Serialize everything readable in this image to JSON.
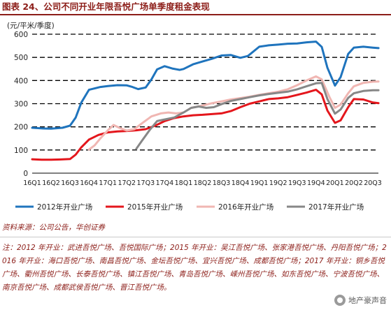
{
  "header": {
    "title": "图表 24、公司不同开业年限吾悦广场单季度租金表现"
  },
  "chart_data": {
    "type": "line",
    "unit_label": "(元/平米/季度)",
    "categories": [
      "16Q1",
      "16Q2",
      "16Q3",
      "16Q4",
      "17Q1",
      "17Q2",
      "17Q3",
      "17Q4",
      "18Q1",
      "18Q2",
      "18Q3",
      "18Q4",
      "19Q1",
      "19Q2",
      "19Q3",
      "19Q4",
      "20Q1",
      "20Q2",
      "20Q3"
    ],
    "ylim": [
      0,
      600
    ],
    "yticks": [
      0,
      100,
      200,
      300,
      400,
      500,
      600
    ],
    "grid": "horizontal-dashed",
    "legend_position": "bottom",
    "series": [
      {
        "name": "2012年开业广场",
        "color": "#1f74bd",
        "points": [
          [
            0,
            196
          ],
          [
            0.6,
            193
          ],
          [
            1,
            192
          ],
          [
            1.6,
            196
          ],
          [
            2,
            205
          ],
          [
            2.3,
            240
          ],
          [
            2.6,
            305
          ],
          [
            3,
            360
          ],
          [
            3.6,
            372
          ],
          [
            4,
            376
          ],
          [
            4.5,
            380
          ],
          [
            5,
            379
          ],
          [
            5.3,
            372
          ],
          [
            5.6,
            363
          ],
          [
            6,
            370
          ],
          [
            6.3,
            405
          ],
          [
            6.6,
            448
          ],
          [
            7,
            462
          ],
          [
            7.4,
            452
          ],
          [
            7.8,
            446
          ],
          [
            8,
            450
          ],
          [
            8.5,
            470
          ],
          [
            9,
            482
          ],
          [
            9.5,
            494
          ],
          [
            10,
            508
          ],
          [
            10.5,
            510
          ],
          [
            11,
            498
          ],
          [
            11.4,
            506
          ],
          [
            12,
            546
          ],
          [
            12.5,
            552
          ],
          [
            13,
            555
          ],
          [
            13.5,
            559
          ],
          [
            14,
            560
          ],
          [
            14.5,
            565
          ],
          [
            15,
            568
          ],
          [
            15.3,
            545
          ],
          [
            15.6,
            455
          ],
          [
            16,
            378
          ],
          [
            16.3,
            415
          ],
          [
            16.7,
            515
          ],
          [
            17,
            542
          ],
          [
            17.5,
            546
          ],
          [
            18,
            542
          ],
          [
            18.3,
            540
          ]
        ]
      },
      {
        "name": "2015年开业广场",
        "color": "#e4161c",
        "points": [
          [
            0,
            60
          ],
          [
            0.5,
            58
          ],
          [
            1,
            58
          ],
          [
            1.5,
            59
          ],
          [
            2,
            61
          ],
          [
            2.3,
            80
          ],
          [
            2.6,
            112
          ],
          [
            3,
            145
          ],
          [
            3.5,
            165
          ],
          [
            4,
            176
          ],
          [
            4.5,
            180
          ],
          [
            5,
            182
          ],
          [
            5.5,
            185
          ],
          [
            6,
            190
          ],
          [
            6.5,
            205
          ],
          [
            7,
            225
          ],
          [
            7.5,
            238
          ],
          [
            8,
            245
          ],
          [
            8.5,
            250
          ],
          [
            9,
            252
          ],
          [
            9.5,
            255
          ],
          [
            10,
            258
          ],
          [
            10.5,
            268
          ],
          [
            11,
            285
          ],
          [
            11.5,
            300
          ],
          [
            12,
            310
          ],
          [
            12.5,
            320
          ],
          [
            13,
            323
          ],
          [
            13.5,
            328
          ],
          [
            14,
            338
          ],
          [
            14.5,
            348
          ],
          [
            15,
            360
          ],
          [
            15.3,
            340
          ],
          [
            15.6,
            270
          ],
          [
            16,
            217
          ],
          [
            16.3,
            228
          ],
          [
            16.7,
            285
          ],
          [
            17,
            320
          ],
          [
            17.5,
            318
          ],
          [
            18,
            305
          ],
          [
            18.3,
            302
          ]
        ]
      },
      {
        "name": "2016年开业广场",
        "color": "#f0b6b2",
        "points": [
          [
            3,
            102
          ],
          [
            3.3,
            120
          ],
          [
            3.6,
            150
          ],
          [
            4,
            185
          ],
          [
            4.3,
            208
          ],
          [
            4.6,
            196
          ],
          [
            5,
            184
          ],
          [
            5.4,
            190
          ],
          [
            5.8,
            215
          ],
          [
            6.3,
            245
          ],
          [
            6.8,
            258
          ],
          [
            7.2,
            262
          ],
          [
            7.6,
            258
          ],
          [
            8,
            262
          ],
          [
            8.4,
            282
          ],
          [
            9,
            292
          ],
          [
            9.5,
            302
          ],
          [
            10,
            310
          ],
          [
            10.5,
            318
          ],
          [
            11,
            324
          ],
          [
            11.5,
            330
          ],
          [
            12,
            338
          ],
          [
            12.5,
            345
          ],
          [
            13,
            352
          ],
          [
            13.5,
            362
          ],
          [
            14,
            380
          ],
          [
            14.5,
            400
          ],
          [
            15,
            418
          ],
          [
            15.3,
            405
          ],
          [
            15.7,
            330
          ],
          [
            16,
            282
          ],
          [
            16.3,
            296
          ],
          [
            16.7,
            345
          ],
          [
            17,
            375
          ],
          [
            17.5,
            390
          ],
          [
            18,
            395
          ],
          [
            18.3,
            396
          ]
        ]
      },
      {
        "name": "2017年开业广场",
        "color": "#878787",
        "points": [
          [
            5.5,
            105
          ],
          [
            5.8,
            140
          ],
          [
            6.2,
            185
          ],
          [
            6.6,
            225
          ],
          [
            7,
            232
          ],
          [
            7.5,
            240
          ],
          [
            8,
            262
          ],
          [
            8.4,
            282
          ],
          [
            8.8,
            288
          ],
          [
            9.2,
            282
          ],
          [
            9.6,
            285
          ],
          [
            10,
            298
          ],
          [
            10.5,
            312
          ],
          [
            11,
            320
          ],
          [
            11.5,
            328
          ],
          [
            12,
            336
          ],
          [
            12.5,
            342
          ],
          [
            13,
            347
          ],
          [
            13.5,
            352
          ],
          [
            14,
            362
          ],
          [
            14.5,
            375
          ],
          [
            15,
            388
          ],
          [
            15.3,
            390
          ],
          [
            15.6,
            320
          ],
          [
            16,
            257
          ],
          [
            16.3,
            275
          ],
          [
            16.7,
            325
          ],
          [
            17,
            345
          ],
          [
            17.5,
            355
          ],
          [
            18,
            358
          ],
          [
            18.3,
            358
          ]
        ]
      }
    ]
  },
  "footer": {
    "source": "资料来源：公司公告，华创证券",
    "note": "注：2012 年开业：武进吾悦广场、吾悦国际广场；2015 年开业：吴江吾悦广场、张家港吾悦广场、丹阳吾悦广场；2016 年开业：海口吾悦广场、南昌吾悦广场、金坛吾悦广场、宜兴吾悦广场、成都吾悦广场；2017 年开业：铜乡吾悦广场、衢州吾悦广场、长泰吾悦广场、镇江吾悦广场、青岛吾悦广场、嵊州吾悦广场、如东吾悦广场、宁波吾悦广场、南京吾悦广场、成都武侯吾悦广场、晋江吾悦广场。",
    "watermark": "地产豪声音"
  }
}
